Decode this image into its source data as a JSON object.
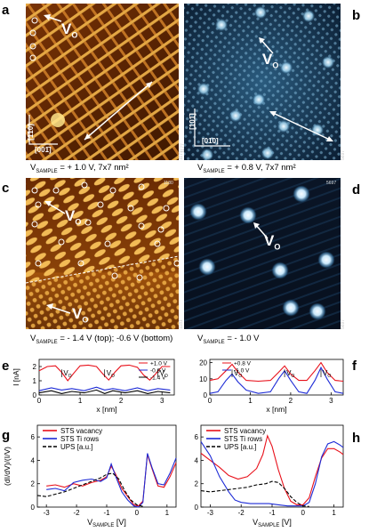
{
  "panel_labels": {
    "a": "a",
    "b": "b",
    "c": "c",
    "d": "d",
    "e": "e",
    "f": "f",
    "g": "g",
    "h": "h"
  },
  "vo_label": "V",
  "vo_sub": "O",
  "panel_a": {
    "dir1": "[1̄10]",
    "dir2": "[001̄]",
    "caption": "V",
    "caption_sub": "SAMPLE",
    "caption_rest": " = + 1.0 V, 7x7 nm²",
    "side_num": "1177"
  },
  "panel_b": {
    "dir1": "[101̄]",
    "dir2": "[01̄0]",
    "caption": "V",
    "caption_sub": "SAMPLE",
    "caption_rest": " = + 0.8 V, 7x7 nm²",
    "side_num": "5697"
  },
  "panel_c": {
    "caption": "V",
    "caption_sub": "SAMPLE",
    "caption_rest": " = - 1.4 V (top); -0.6 V (bottom)",
    "top_num": "1180",
    "side_num": "1181"
  },
  "panel_d": {
    "caption": "V",
    "caption_sub": "SAMPLE",
    "caption_rest": " = - 1.0 V",
    "top_num": "5697",
    "side_num": "5697"
  },
  "colors": {
    "anatase_dark": "#4a1e00",
    "anatase_bright": "#f6c768",
    "blue_dark": "#050d1c",
    "blue_bright": "#dff2ff",
    "red": "#e8101a",
    "blue": "#1d2bd6",
    "black": "#000000"
  },
  "chart_data": [
    {
      "id": "e",
      "type": "line",
      "xlabel": "x [nm]",
      "ylabel": "I [nA]",
      "xlim": [
        0,
        3.3
      ],
      "ylim": [
        0,
        2.5
      ],
      "xticks": [
        0,
        1,
        2,
        3
      ],
      "yticks": [
        0,
        1,
        2
      ],
      "series": [
        {
          "name": "+1.0 V",
          "color": "#e8101a",
          "x": [
            0,
            0.2,
            0.4,
            0.55,
            0.7,
            0.85,
            1.0,
            1.2,
            1.4,
            1.55,
            1.7,
            1.85,
            2.0,
            2.2,
            2.4,
            2.55,
            2.7,
            2.85,
            3.0,
            3.2
          ],
          "y": [
            1.7,
            2.0,
            2.05,
            1.6,
            1.0,
            1.55,
            2.05,
            2.1,
            2.0,
            1.5,
            1.05,
            1.6,
            2.05,
            2.1,
            1.95,
            1.4,
            1.05,
            1.5,
            2.0,
            2.0
          ]
        },
        {
          "name": "-0.6 V",
          "color": "#1d2bd6",
          "x": [
            0,
            0.3,
            0.55,
            0.8,
            1.1,
            1.4,
            1.6,
            1.8,
            2.1,
            2.4,
            2.65,
            2.9,
            3.2
          ],
          "y": [
            0.3,
            0.5,
            0.35,
            0.45,
            0.3,
            0.55,
            0.35,
            0.45,
            0.3,
            0.5,
            0.3,
            0.45,
            0.35
          ]
        },
        {
          "name": "-1.4 V",
          "color": "#000000",
          "x": [
            0,
            0.3,
            0.55,
            0.8,
            1.1,
            1.4,
            1.6,
            1.8,
            2.1,
            2.4,
            2.65,
            2.9,
            3.2
          ],
          "y": [
            0.15,
            0.3,
            0.1,
            0.25,
            0.15,
            0.35,
            0.1,
            0.3,
            0.15,
            0.3,
            0.1,
            0.25,
            0.15
          ]
        }
      ],
      "annotations": [
        {
          "x": 0.55,
          "text": "V",
          "sub": "O"
        },
        {
          "x": 1.6,
          "text": "V",
          "sub": "O"
        },
        {
          "x": 2.9,
          "text": "V",
          "sub": "O"
        }
      ]
    },
    {
      "id": "f",
      "type": "line",
      "xlabel": "x [nm]",
      "ylabel": "",
      "xlim": [
        0,
        3.3
      ],
      "ylim": [
        0,
        22
      ],
      "xticks": [
        0,
        1,
        2,
        3
      ],
      "yticks": [
        0,
        10,
        20
      ],
      "series": [
        {
          "name": "+0.8 V",
          "color": "#e8101a",
          "x": [
            0,
            0.2,
            0.4,
            0.55,
            0.7,
            0.9,
            1.2,
            1.5,
            1.7,
            1.85,
            2.0,
            2.2,
            2.4,
            2.6,
            2.75,
            2.9,
            3.1,
            3.3
          ],
          "y": [
            9,
            10,
            15,
            19,
            14,
            9,
            8.5,
            9,
            14,
            18,
            13,
            9,
            9,
            15,
            20,
            14,
            9,
            8.5
          ]
        },
        {
          "name": "-1.0 V",
          "color": "#1d2bd6",
          "x": [
            0,
            0.2,
            0.4,
            0.55,
            0.7,
            0.9,
            1.2,
            1.5,
            1.7,
            1.85,
            2.0,
            2.2,
            2.4,
            2.6,
            2.75,
            2.9,
            3.1,
            3.3
          ],
          "y": [
            1,
            2,
            9,
            13,
            8,
            3,
            1,
            2,
            10,
            15,
            9,
            2,
            1,
            9,
            17,
            10,
            2,
            1
          ]
        }
      ],
      "annotations": [
        {
          "x": 0.55,
          "text": "V",
          "sub": "O"
        },
        {
          "x": 1.85,
          "text": "V",
          "sub": "O"
        },
        {
          "x": 2.75,
          "text": "V",
          "sub": "O"
        }
      ]
    },
    {
      "id": "g",
      "type": "line",
      "xlabel": "V",
      "xlabel_sub": "SAMPLE",
      "xlabel_rest": " [V]",
      "ylabel": "(dI/dV)/(I/V)",
      "xlim": [
        -3.3,
        1.3
      ],
      "ylim": [
        0,
        7
      ],
      "xticks": [
        -3,
        -2,
        -1,
        0,
        1
      ],
      "yticks": [
        0,
        2,
        4,
        6
      ],
      "series": [
        {
          "name": "STS vacancy",
          "color": "#e8101a",
          "dash": "",
          "x": [
            -3.0,
            -2.7,
            -2.4,
            -2.1,
            -1.8,
            -1.5,
            -1.2,
            -1.0,
            -0.85,
            -0.7,
            -0.5,
            -0.3,
            -0.1,
            0.05,
            0.2,
            0.35,
            0.5,
            0.7,
            0.9,
            1.1,
            1.3
          ],
          "y": [
            1.8,
            1.9,
            1.7,
            2.0,
            1.8,
            2.1,
            2.3,
            2.6,
            3.5,
            2.8,
            1.6,
            0.9,
            0.2,
            0.1,
            0.5,
            4.5,
            3.3,
            1.8,
            1.7,
            2.6,
            3.8
          ]
        },
        {
          "name": "STS Ti rows",
          "color": "#1d2bd6",
          "dash": "",
          "x": [
            -3.0,
            -2.7,
            -2.4,
            -2.1,
            -1.8,
            -1.5,
            -1.2,
            -1.0,
            -0.85,
            -0.7,
            -0.5,
            -0.3,
            -0.1,
            0.05,
            0.2,
            0.35,
            0.5,
            0.7,
            0.9,
            1.1,
            1.3
          ],
          "y": [
            1.5,
            1.6,
            1.4,
            2.1,
            2.3,
            2.4,
            2.2,
            2.5,
            3.7,
            2.6,
            1.3,
            0.6,
            0.1,
            0.0,
            0.4,
            4.6,
            3.4,
            2.0,
            1.9,
            2.9,
            4.2
          ]
        },
        {
          "name": "UPS [a.u.]",
          "color": "#000000",
          "dash": "4,2",
          "x": [
            -3.3,
            -3.0,
            -2.7,
            -2.4,
            -2.1,
            -1.8,
            -1.5,
            -1.2,
            -1.0,
            -0.8,
            -0.6,
            -0.4,
            -0.2,
            0.0,
            0.2
          ],
          "y": [
            1.0,
            0.9,
            1.1,
            1.3,
            1.6,
            1.9,
            2.2,
            2.5,
            2.8,
            2.9,
            2.4,
            1.4,
            0.6,
            0.2,
            0.05
          ]
        }
      ]
    },
    {
      "id": "h",
      "type": "line",
      "xlabel": "V",
      "xlabel_sub": "SAMPLE",
      "xlabel_rest": " [V]",
      "ylabel": "",
      "xlim": [
        -3.3,
        1.3
      ],
      "ylim": [
        0,
        7
      ],
      "xticks": [
        -3,
        -2,
        -1,
        0,
        1
      ],
      "yticks": [
        0,
        2,
        4,
        6
      ],
      "series": [
        {
          "name": "STS vacancy",
          "color": "#e8101a",
          "dash": "",
          "x": [
            -3.3,
            -3.0,
            -2.7,
            -2.4,
            -2.1,
            -1.8,
            -1.5,
            -1.3,
            -1.15,
            -1.0,
            -0.8,
            -0.6,
            -0.4,
            -0.2,
            0.0,
            0.2,
            0.4,
            0.6,
            0.8,
            1.0,
            1.2,
            1.3
          ],
          "y": [
            4.6,
            4.0,
            3.4,
            2.7,
            2.4,
            2.6,
            3.3,
            4.5,
            6.1,
            5.2,
            3.2,
            1.6,
            0.5,
            0.2,
            0.2,
            0.8,
            2.6,
            4.2,
            5.0,
            5.0,
            4.7,
            4.5
          ]
        },
        {
          "name": "STS Ti rows",
          "color": "#1d2bd6",
          "dash": "",
          "x": [
            -3.3,
            -3.0,
            -2.7,
            -2.4,
            -2.2,
            -2.0,
            -1.7,
            -1.4,
            -1.1,
            -0.8,
            -0.5,
            -0.2,
            0.0,
            0.2,
            0.4,
            0.6,
            0.8,
            1.0,
            1.2,
            1.3
          ],
          "y": [
            5.6,
            4.4,
            2.6,
            1.3,
            0.6,
            0.4,
            0.3,
            0.3,
            0.3,
            0.2,
            0.1,
            0.1,
            0.1,
            0.4,
            2.0,
            4.3,
            5.4,
            5.6,
            5.3,
            5.1
          ]
        },
        {
          "name": "UPS [a.u.]",
          "color": "#000000",
          "dash": "4,2",
          "x": [
            -3.3,
            -3.0,
            -2.7,
            -2.4,
            -2.1,
            -1.8,
            -1.5,
            -1.2,
            -1.0,
            -0.8,
            -0.6,
            -0.4,
            -0.2,
            0.0,
            0.2
          ],
          "y": [
            1.4,
            1.3,
            1.4,
            1.5,
            1.6,
            1.7,
            1.9,
            2.0,
            2.2,
            2.1,
            1.6,
            0.9,
            0.4,
            0.1,
            0.05
          ]
        }
      ]
    }
  ]
}
